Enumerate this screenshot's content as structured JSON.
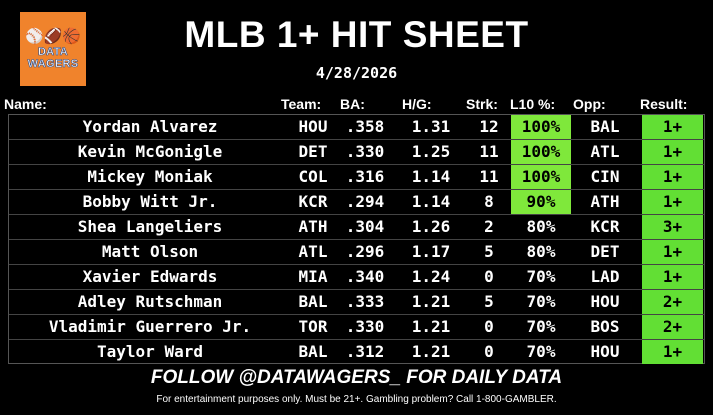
{
  "logo": {
    "text_line1": "DATA",
    "text_line2": "WAGERS",
    "icon": "sports-balls-icon"
  },
  "title": "MLB 1+ HIT SHEET",
  "date": "4/28/2026",
  "headers": {
    "name": "Name:",
    "team": "Team:",
    "ba": "BA:",
    "hg": "H/G:",
    "strk": "Strk:",
    "l10": "L10 %:",
    "opp": "Opp:",
    "result": "Result:"
  },
  "rows": [
    {
      "name": "Yordan Alvarez",
      "team": "HOU",
      "ba": ".358",
      "hg": "1.31",
      "strk": "12",
      "l10": "100%",
      "opp": "BAL",
      "result": "1+"
    },
    {
      "name": "Kevin McGonigle",
      "team": "DET",
      "ba": ".330",
      "hg": "1.25",
      "strk": "11",
      "l10": "100%",
      "opp": "ATL",
      "result": "1+"
    },
    {
      "name": "Mickey Moniak",
      "team": "COL",
      "ba": ".316",
      "hg": "1.14",
      "strk": "11",
      "l10": "100%",
      "opp": "CIN",
      "result": "1+"
    },
    {
      "name": "Bobby Witt Jr.",
      "team": "KCR",
      "ba": ".294",
      "hg": "1.14",
      "strk": "8",
      "l10": "90%",
      "opp": "ATH",
      "result": "1+"
    },
    {
      "name": "Shea Langeliers",
      "team": "ATH",
      "ba": ".304",
      "hg": "1.26",
      "strk": "2",
      "l10": "80%",
      "opp": "KCR",
      "result": "3+"
    },
    {
      "name": "Matt Olson",
      "team": "ATL",
      "ba": ".296",
      "hg": "1.17",
      "strk": "5",
      "l10": "80%",
      "opp": "DET",
      "result": "1+"
    },
    {
      "name": "Xavier Edwards",
      "team": "MIA",
      "ba": ".340",
      "hg": "1.24",
      "strk": "0",
      "l10": "70%",
      "opp": "LAD",
      "result": "1+"
    },
    {
      "name": "Adley Rutschman",
      "team": "BAL",
      "ba": ".333",
      "hg": "1.21",
      "strk": "5",
      "l10": "70%",
      "opp": "HOU",
      "result": "2+"
    },
    {
      "name": "Vladimir Guerrero Jr.",
      "team": "TOR",
      "ba": ".330",
      "hg": "1.21",
      "strk": "0",
      "l10": "70%",
      "opp": "BOS",
      "result": "2+"
    },
    {
      "name": "Taylor Ward",
      "team": "BAL",
      "ba": ".312",
      "hg": "1.21",
      "strk": "0",
      "l10": "70%",
      "opp": "HOU",
      "result": "1+"
    }
  ],
  "highlight_color": "#7fe83b",
  "result_color": "#62df34",
  "follow": "FOLLOW @DATAWAGERS_ FOR DAILY DATA",
  "disclaimer": "For entertainment purposes only. Must be 21+. Gambling problem? Call 1-800-GAMBLER."
}
